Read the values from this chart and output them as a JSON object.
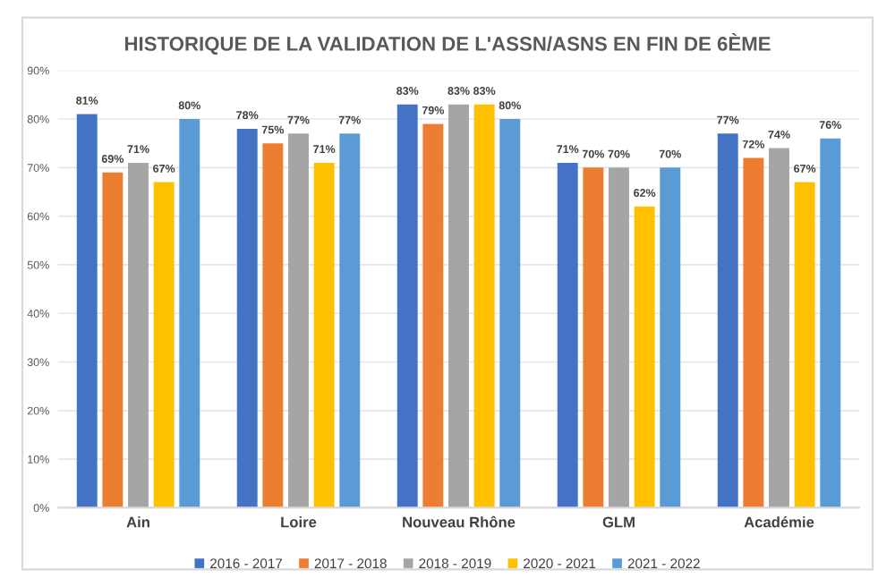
{
  "chart_data": {
    "type": "bar",
    "title": "HISTORIQUE DE LA VALIDATION DE L'ASSN/ASNS EN FIN DE 6ÈME",
    "categories": [
      "Ain",
      "Loire",
      "Nouveau Rhône",
      "GLM",
      "Académie"
    ],
    "series": [
      {
        "name": "2016 - 2017",
        "color": "#4472c4",
        "values": [
          81,
          78,
          83,
          71,
          77
        ],
        "value_labels": [
          "81%",
          "78%",
          "83%",
          "71%",
          "77%"
        ]
      },
      {
        "name": "2017 - 2018",
        "color": "#ed7d31",
        "values": [
          69,
          75,
          79,
          70,
          72
        ],
        "value_labels": [
          "69%",
          "75%",
          "79%",
          "70%",
          "72%"
        ]
      },
      {
        "name": "2018 - 2019",
        "color": "#a5a5a5",
        "values": [
          71,
          77,
          83,
          70,
          74
        ],
        "value_labels": [
          "71%",
          "77%",
          "83%",
          "70%",
          "74%"
        ]
      },
      {
        "name": "2020 - 2021",
        "color": "#ffc000",
        "values": [
          67,
          71,
          83,
          62,
          67
        ],
        "value_labels": [
          "67%",
          "71%",
          "83%",
          "62%",
          "67%"
        ]
      },
      {
        "name": "2021 - 2022",
        "color": "#5b9bd5",
        "values": [
          80,
          77,
          80,
          70,
          76
        ],
        "value_labels": [
          "80%",
          "77%",
          "80%",
          "70%",
          "76%"
        ]
      }
    ],
    "ylim": [
      0,
      90
    ],
    "yticks": [
      {
        "value": 0,
        "label": "0%"
      },
      {
        "value": 10,
        "label": "10%"
      },
      {
        "value": 20,
        "label": "20%"
      },
      {
        "value": 30,
        "label": "30%"
      },
      {
        "value": 40,
        "label": "40%"
      },
      {
        "value": 50,
        "label": "50%"
      },
      {
        "value": 60,
        "label": "60%"
      },
      {
        "value": 70,
        "label": "70%"
      },
      {
        "value": 80,
        "label": "80%"
      },
      {
        "value": 90,
        "label": "90%"
      }
    ],
    "grid": "y",
    "legend": "bottom"
  }
}
